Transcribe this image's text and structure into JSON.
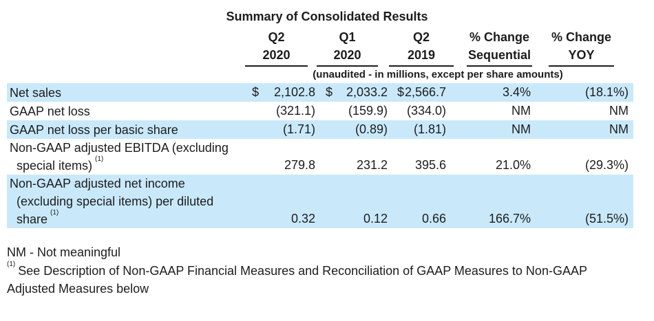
{
  "title": "Summary of Consolidated Results",
  "colors": {
    "row_highlight": "#c9e9fb",
    "text": "#1c1c1c"
  },
  "table": {
    "currency_symbol": "$",
    "footnote_marker": "(1)",
    "units_note": "(unaudited - in millions, except per share amounts)",
    "columns": [
      {
        "line1": "Q2",
        "line2": "2020"
      },
      {
        "line1": "Q1",
        "line2": "2020"
      },
      {
        "line1": "Q2",
        "line2": "2019"
      },
      {
        "line1": "% Change",
        "line2": "Sequential"
      },
      {
        "line1": "% Change",
        "line2": "YOY"
      }
    ],
    "rows": [
      {
        "label_lines": [
          "Net sales"
        ],
        "values": [
          "2,102.8",
          "2,033.2",
          "2,566.7",
          "3.4%",
          "(18.1%)"
        ],
        "highlighted": true,
        "has_currency": true,
        "has_footnote": false
      },
      {
        "label_lines": [
          "GAAP net loss"
        ],
        "values": [
          "(321.1)",
          "(159.9)",
          "(334.0)",
          "NM",
          "NM"
        ],
        "highlighted": false,
        "has_currency": false,
        "has_footnote": false
      },
      {
        "label_lines": [
          "GAAP net loss per basic share"
        ],
        "values": [
          "(1.71)",
          "(0.89)",
          "(1.81)",
          "NM",
          "NM"
        ],
        "highlighted": true,
        "has_currency": false,
        "has_footnote": false
      },
      {
        "label_lines": [
          "Non-GAAP adjusted EBITDA (excluding",
          "special items)"
        ],
        "values": [
          "279.8",
          "231.2",
          "395.6",
          "21.0%",
          "(29.3%)"
        ],
        "highlighted": false,
        "has_currency": false,
        "has_footnote": true
      },
      {
        "label_lines": [
          "Non-GAAP adjusted net income",
          "(excluding special items) per diluted",
          "share"
        ],
        "values": [
          "0.32",
          "0.12",
          "0.66",
          "166.7%",
          "(51.5%)"
        ],
        "highlighted": true,
        "has_currency": false,
        "has_footnote": true
      }
    ]
  },
  "footer": {
    "nm_note": "NM - Not meaningful",
    "footnote_text": "See Description of Non-GAAP Financial Measures and Reconciliation of GAAP Measures to Non-GAAP Adjusted Measures below"
  }
}
